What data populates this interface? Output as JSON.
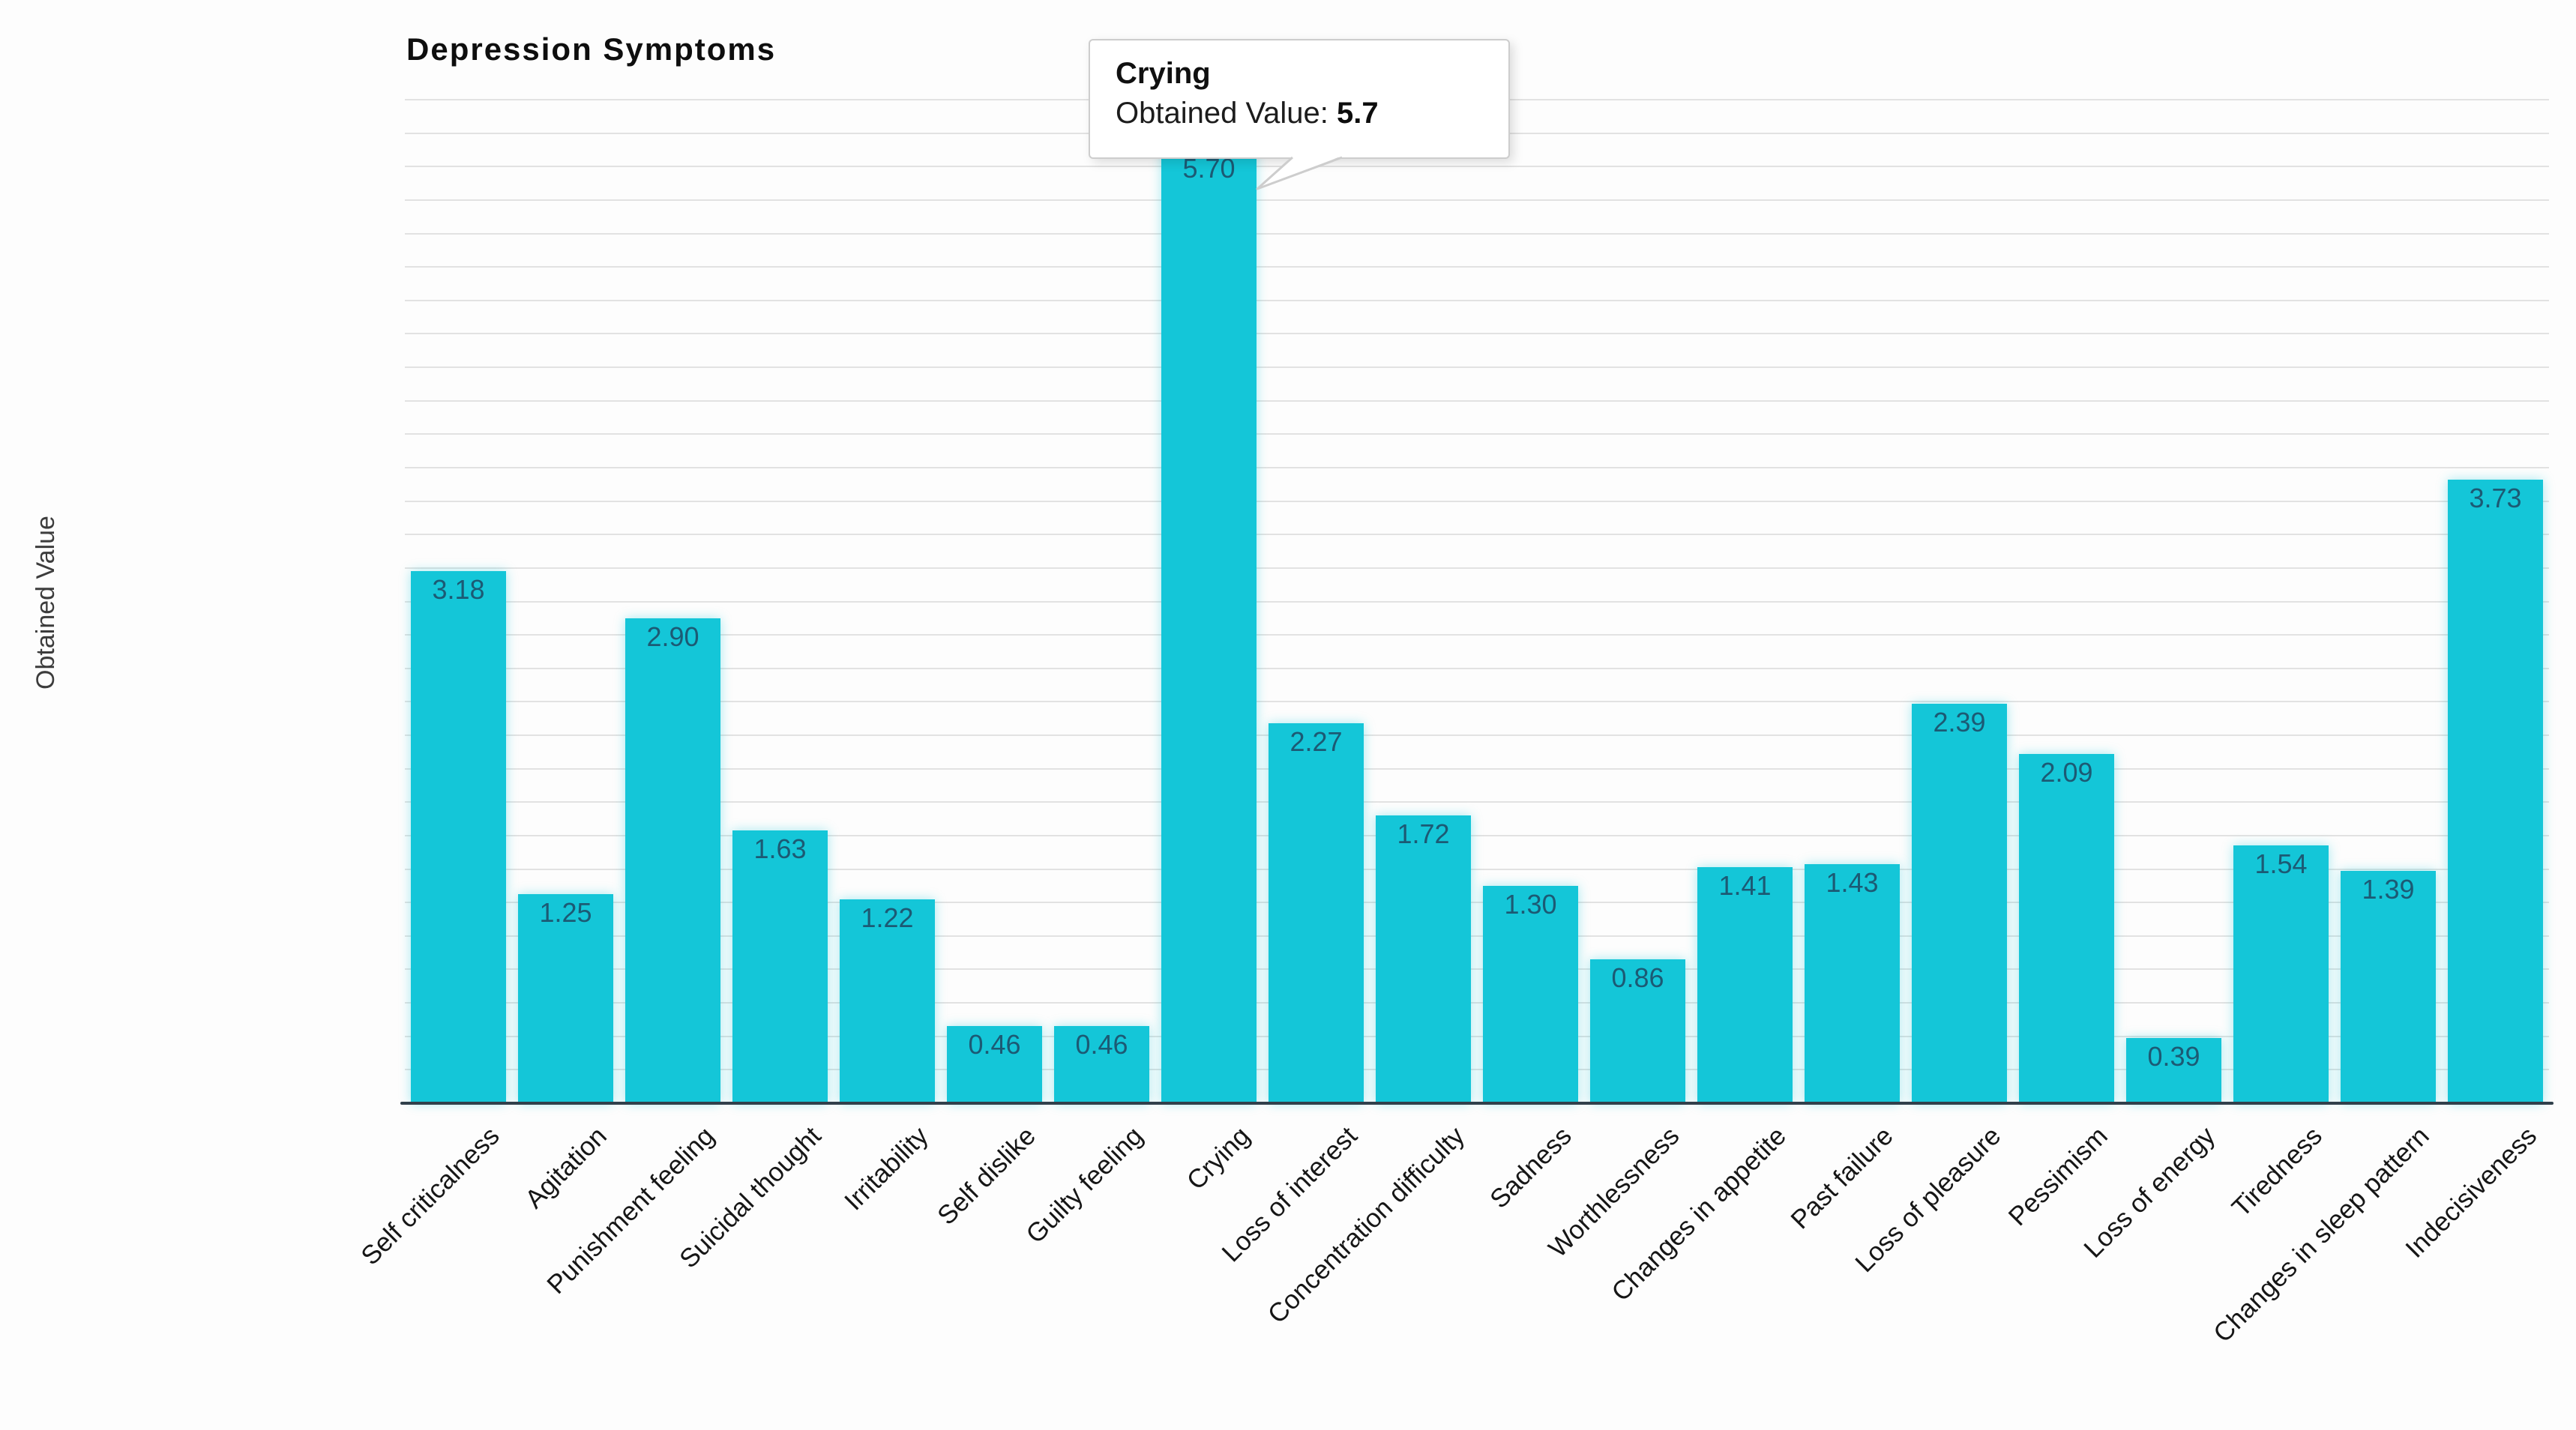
{
  "title": "Depression Symptoms",
  "y_axis_label": "Obtained Value",
  "tooltip": {
    "label": "Crying",
    "value_label": "Obtained Value:",
    "value": "5.7"
  },
  "chart_data": {
    "type": "bar",
    "title": "Depression Symptoms",
    "xlabel": "",
    "ylabel": "Obtained Value",
    "categories": [
      "Self criticalness",
      "Agitation",
      "Punishment feeling",
      "Suicidal thought",
      "Irritability",
      "Self dislike",
      "Guilty feeling",
      "Crying",
      "Loss of interest",
      "Concentration difficulty",
      "Sadness",
      "Worthlessness",
      "Changes in appetite",
      "Past failure",
      "Loss of pleasure",
      "Pessimism",
      "Loss of energy",
      "Tiredness",
      "Changes in sleep pattern",
      "Indecisiveness"
    ],
    "values": [
      3.18,
      1.25,
      2.9,
      1.63,
      1.22,
      0.46,
      0.46,
      5.7,
      2.27,
      1.72,
      1.3,
      0.86,
      1.41,
      1.43,
      2.39,
      2.09,
      0.39,
      1.54,
      1.39,
      3.73
    ],
    "ylim": [
      0,
      6.0
    ],
    "gridline_step": 0.2,
    "grid": true,
    "legend": false,
    "bar_color": "#14c6d8",
    "bar_value_label_color": "#1c5a74",
    "gridline_color": "#e2e2e2",
    "axis_line_color": "#31404b",
    "highlighted_bar": "Crying"
  }
}
